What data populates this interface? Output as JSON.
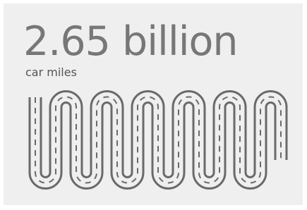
{
  "headline": "2.65 billion",
  "subtitle": "car miles"
}
